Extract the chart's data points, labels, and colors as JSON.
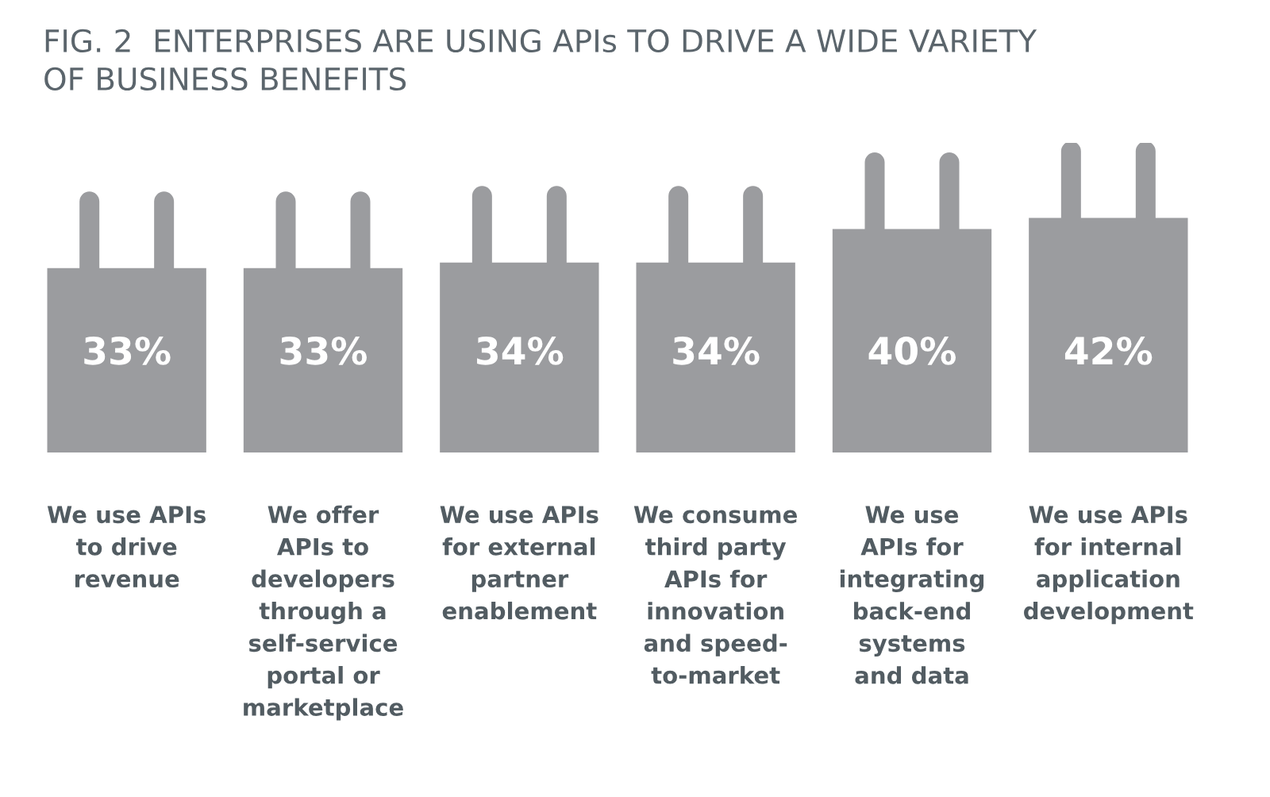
{
  "chart_data": {
    "type": "bar",
    "title": "FIG. 2  ENTERPRISES ARE USING APIs TO DRIVE A WIDE VARIETY\nOF BUSINESS BENEFITS",
    "categories": [
      "We use APIs\nto drive\nrevenue",
      "We offer\nAPIs to\ndevelopers\nthrough a\nself-service\nportal or\nmarketplace",
      "We use APIs\nfor external\npartner\nenablement",
      "We consume\nthird party\nAPIs for\ninnovation\nand speed-\nto-market",
      "We use\nAPIs for\nintegrating\nback-end\nsystems\nand data",
      "We use APIs\nfor internal\napplication\ndevelopment"
    ],
    "values": [
      33,
      33,
      34,
      34,
      40,
      42
    ],
    "value_labels": [
      "33%",
      "33%",
      "34%",
      "34%",
      "40%",
      "42%"
    ],
    "color": "#9b9c9f"
  }
}
